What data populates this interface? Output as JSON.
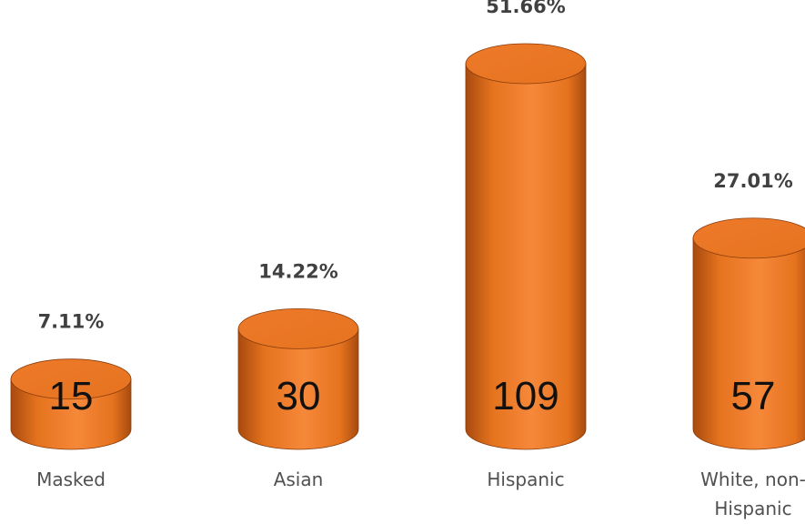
{
  "chart_data": {
    "type": "bar",
    "style": "3d-cylinder",
    "categories": [
      "Masked",
      "Asian",
      "Hispanic",
      "White, non-Hispanic"
    ],
    "category_lines": [
      [
        "Masked"
      ],
      [
        "Asian"
      ],
      [
        "Hispanic"
      ],
      [
        "White, non-",
        "Hispanic"
      ]
    ],
    "values": [
      15,
      30,
      109,
      57
    ],
    "value_labels": [
      "15",
      "30",
      "109",
      "57"
    ],
    "percent_labels": [
      "7.11%",
      "14.22%",
      "51.66%",
      "27.01%"
    ],
    "ylim": [
      0,
      109
    ],
    "grid": false,
    "legend": "none"
  },
  "colors": {
    "bar_light": "#f6883a",
    "bar_mid": "#e5731e",
    "bar_dark": "#a84a0f",
    "bar_top": "#ee7a2a",
    "edge": "#8a3c0c",
    "percent_text": "#404040",
    "value_text": "#111111",
    "category_text": "#505050"
  }
}
